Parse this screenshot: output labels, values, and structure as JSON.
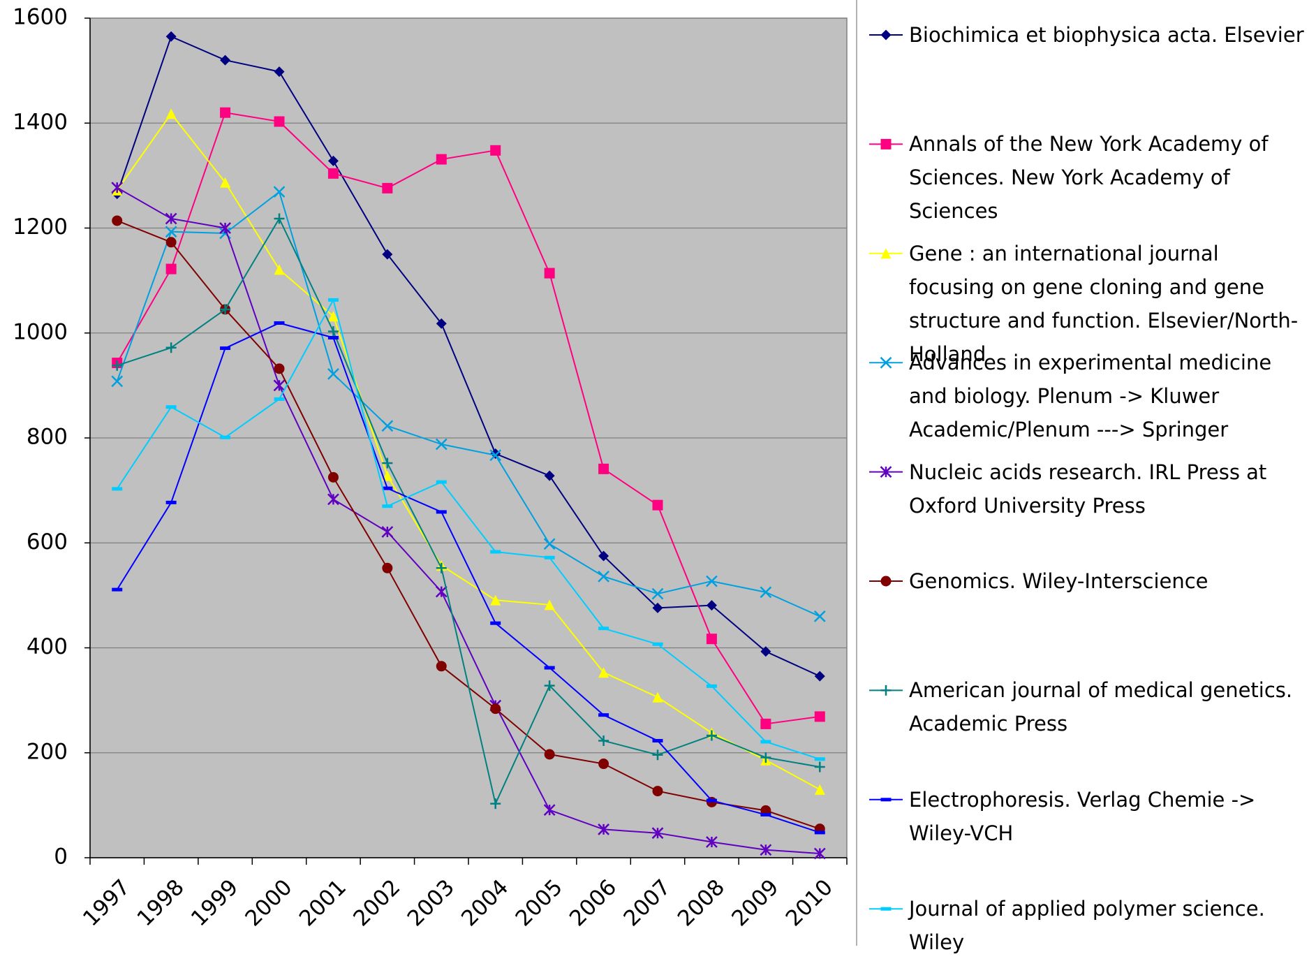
{
  "chart_data": {
    "type": "line",
    "categories": [
      "1997",
      "1998",
      "1999",
      "2000",
      "2001",
      "2002",
      "2003",
      "2004",
      "2005",
      "2006",
      "2007",
      "2008",
      "2009",
      "2010"
    ],
    "ylim": [
      0,
      1600
    ],
    "yticks": [
      0,
      200,
      400,
      600,
      800,
      1000,
      1200,
      1400,
      1600
    ],
    "grid": true,
    "legend": "right",
    "series": [
      {
        "name": "Biochimica et biophysica acta. Elsevier",
        "color": "#000080",
        "marker": "diamond",
        "values": [
          1265,
          1565,
          1520,
          1498,
          1328,
          1150,
          1018,
          770,
          728,
          575,
          476,
          481,
          393,
          346
        ]
      },
      {
        "name": "Annals of the New York Academy of Sciences. New York Academy of Sciences",
        "color": "#FF0080",
        "marker": "square",
        "values": [
          943,
          1122,
          1420,
          1403,
          1304,
          1276,
          1331,
          1348,
          1114,
          741,
          672,
          417,
          255,
          269
        ]
      },
      {
        "name": "Gene : an international journal focusing on gene cloning and gene structure and function. Elsevier/North-Holland",
        "color": "#FFFF00",
        "marker": "triangle",
        "values": [
          1272,
          1418,
          1287,
          1121,
          1032,
          728,
          557,
          491,
          482,
          353,
          306,
          238,
          186,
          130
        ]
      },
      {
        "name": "Advances in experimental medicine and biology. Plenum -> Kluwer Academic/Plenum ---> Springer",
        "color": "#00A0E0",
        "marker": "x",
        "values": [
          908,
          1193,
          1190,
          1269,
          922,
          823,
          788,
          767,
          598,
          536,
          503,
          527,
          506,
          460
        ]
      },
      {
        "name": "Nucleic acids research. IRL Press at Oxford University Press",
        "color": "#6000C0",
        "marker": "star",
        "values": [
          1277,
          1218,
          1200,
          900,
          683,
          621,
          507,
          290,
          91,
          54,
          47,
          30,
          15,
          8
        ]
      },
      {
        "name": "Genomics. Wiley-Interscience",
        "color": "#800000",
        "marker": "circle",
        "values": [
          1214,
          1173,
          1045,
          932,
          725,
          552,
          365,
          284,
          197,
          179,
          127,
          106,
          90,
          55
        ]
      },
      {
        "name": "American journal of medical genetics. Academic Press",
        "color": "#008080",
        "marker": "plus",
        "values": [
          938,
          972,
          1045,
          1218,
          1003,
          752,
          552,
          103,
          328,
          223,
          196,
          233,
          191,
          173
        ]
      },
      {
        "name": "Electrophoresis. Verlag Chemie -> Wiley-VCH",
        "color": "#0000FF",
        "marker": "dash",
        "values": [
          511,
          677,
          971,
          1019,
          991,
          704,
          659,
          447,
          362,
          272,
          223,
          109,
          82,
          48
        ]
      },
      {
        "name": "Journal of applied polymer science. Wiley",
        "color": "#00CCFF",
        "marker": "dash",
        "values": [
          703,
          859,
          801,
          874,
          1063,
          670,
          716,
          583,
          572,
          437,
          407,
          327,
          221,
          188
        ]
      }
    ]
  }
}
